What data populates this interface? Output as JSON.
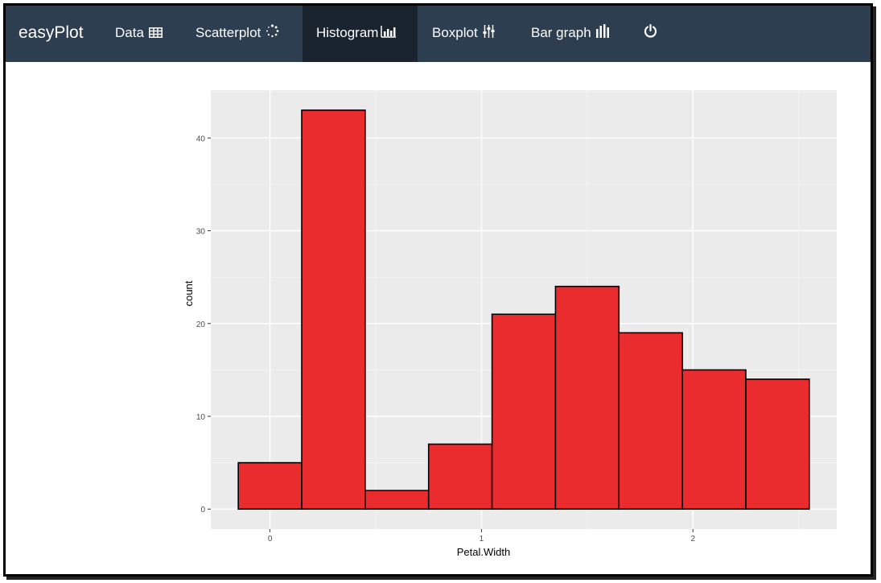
{
  "navbar": {
    "brand": "easyPlot",
    "items": [
      {
        "label": "Data",
        "icon": "table-icon"
      },
      {
        "label": "Scatterplot",
        "icon": "scatter-spinner-icon"
      },
      {
        "label": "Histogram",
        "icon": "bar-chart-icon",
        "active": true
      },
      {
        "label": "Boxplot",
        "icon": "sliders-icon"
      },
      {
        "label": "Bar graph",
        "icon": "bars-icon"
      },
      {
        "label": "",
        "icon": "power-icon"
      }
    ],
    "colors": {
      "background": "#2c3e50",
      "active": "#1a242f",
      "text": "#ffffff"
    }
  },
  "chart_data": {
    "type": "bar",
    "xlabel": "Petal.Width",
    "ylabel": "count",
    "bins": [
      {
        "x0": -0.15,
        "x1": 0.15,
        "count": 5
      },
      {
        "x0": 0.15,
        "x1": 0.45,
        "count": 43
      },
      {
        "x0": 0.45,
        "x1": 0.75,
        "count": 2
      },
      {
        "x0": 0.75,
        "x1": 1.05,
        "count": 7
      },
      {
        "x0": 1.05,
        "x1": 1.35,
        "count": 21
      },
      {
        "x0": 1.35,
        "x1": 1.65,
        "count": 24
      },
      {
        "x0": 1.65,
        "x1": 1.95,
        "count": 19
      },
      {
        "x0": 1.95,
        "x1": 2.25,
        "count": 15
      },
      {
        "x0": 2.25,
        "x1": 2.55,
        "count": 14
      }
    ],
    "xticks": [
      0,
      1,
      2
    ],
    "yticks": [
      0,
      10,
      20,
      30,
      40
    ],
    "xlim": [
      -0.28,
      2.68
    ],
    "ylim": [
      -2.15,
      45.15
    ],
    "grid": true,
    "fill": "#ea2c2f",
    "stroke": "#000000",
    "panel_background": "#ebebeb"
  }
}
